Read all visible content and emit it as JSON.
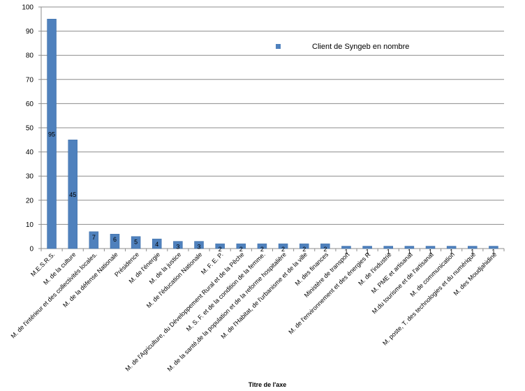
{
  "chart_data": {
    "type": "bar",
    "title": "",
    "xlabel": "Titre de l'axe",
    "ylabel": "",
    "ylim": [
      0,
      100
    ],
    "yticks": [
      0,
      10,
      20,
      30,
      40,
      50,
      60,
      70,
      80,
      90,
      100
    ],
    "grid": "horizontal",
    "legend_position": "top-right",
    "bar_color": "#4F81BD",
    "categories": [
      "M.E.S.R.S.",
      "M. de la culture",
      "M. de l'intérieur et des collectivités locales.",
      "M. de la défense Nationale",
      "Présidence",
      "M. de l'énergie",
      "M. de la justice",
      "M. de l'éducation Nationale",
      "M. F. E. P.",
      "M. de l'Agriculture, du Développement Rural et de la Pêche",
      "M. S. F. et de la condition de la femme.",
      "M. de la santé,de la population et de la reforme hospitalière",
      "M. de l'Habitat, de l'urbanisme et de la ville",
      "M. des finances",
      "Ministère de transport",
      "M. de l'environnement et des énergies R",
      "M. de l'industrie",
      "M. PME et artisanat",
      "M.du tourisme et de l'artisanat",
      "M. de communication",
      "M. poste, T. des technologies et du numérique",
      "M. des Moudjahidine"
    ],
    "series": [
      {
        "name": "Client de Syngeb en nombre",
        "values": [
          95,
          45,
          7,
          6,
          5,
          4,
          3,
          3,
          2,
          2,
          2,
          2,
          2,
          2,
          1,
          1,
          1,
          1,
          1,
          1,
          1,
          1
        ]
      }
    ]
  }
}
